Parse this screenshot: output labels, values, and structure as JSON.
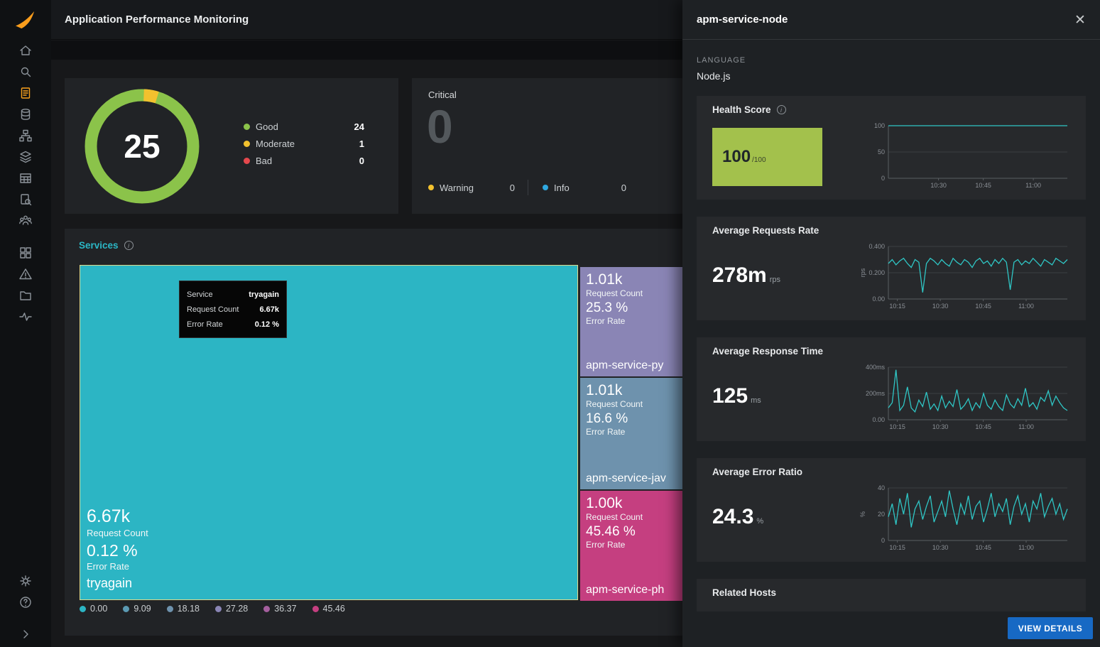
{
  "header": {
    "title": "Application Performance Monitoring"
  },
  "sidebar": {
    "icons": [
      "solarwinds-logo",
      "home",
      "search",
      "reports-active",
      "database",
      "topology",
      "layers",
      "table",
      "query",
      "users",
      "dashboards",
      "alerts",
      "projects",
      "activity",
      "settings",
      "help",
      "collapse"
    ]
  },
  "summary": {
    "score": "25",
    "legend": [
      {
        "label": "Good",
        "value": "24",
        "color": "#8bc34a"
      },
      {
        "label": "Moderate",
        "value": "1",
        "color": "#f2c12e"
      },
      {
        "label": "Bad",
        "value": "0",
        "color": "#e5484d"
      }
    ],
    "critical_label": "Critical",
    "critical_value": "0",
    "warning_label": "Warning",
    "warning_value": "0",
    "warning_color": "#f2c12e",
    "info_label": "Info",
    "info_value": "0",
    "info_color": "#2fa8e0"
  },
  "services": {
    "title": "Services",
    "tooltip": {
      "rows": [
        {
          "label": "Service",
          "value": "tryagain"
        },
        {
          "label": "Request Count",
          "value": "6.67k"
        },
        {
          "label": "Error Rate",
          "value": "0.12 %"
        }
      ]
    },
    "cells": {
      "main": {
        "request_count": "6.67k",
        "request_label": "Request Count",
        "error_rate": "0.12 %",
        "error_label": "Error Rate",
        "name": "tryagain",
        "color": "#2cb5c4"
      },
      "side": [
        {
          "request_count": "1.01k",
          "request_label": "Request Count",
          "error_rate": "25.3 %",
          "error_label": "Error Rate",
          "name": "apm-service-py",
          "color": "#8a85b5"
        },
        {
          "request_count": "1.01k",
          "request_label": "Request Count",
          "error_rate": "16.6 %",
          "error_label": "Error Rate",
          "name": "apm-service-jav",
          "color": "#6e92ad"
        },
        {
          "request_count": "1.00k",
          "request_label": "Request Count",
          "error_rate": "45.46 %",
          "error_label": "Error Rate",
          "name": "apm-service-ph",
          "color": "#c53f80"
        }
      ]
    },
    "legend": [
      {
        "value": "0.00",
        "color": "#2cb5c4"
      },
      {
        "value": "9.09",
        "color": "#5b9ab3"
      },
      {
        "value": "18.18",
        "color": "#6e92ad"
      },
      {
        "value": "27.28",
        "color": "#8a85b5"
      },
      {
        "value": "36.37",
        "color": "#a55f9e"
      },
      {
        "value": "45.46",
        "color": "#c53f80"
      }
    ]
  },
  "drawer": {
    "title": "apm-service-node",
    "language_label": "LANGUAGE",
    "language_value": "Node.js",
    "related_hosts": "Related Hosts",
    "view_details": "VIEW DETAILS",
    "cards": [
      {
        "title": "Health Score",
        "value": "100",
        "unit": "/100",
        "box_color": "#a3c14c",
        "chart": {
          "type": "line",
          "color": "#2fc6c5",
          "ymin": 0,
          "ymax": 100,
          "yticks": [
            {
              "v": 100,
              "label": "100"
            },
            {
              "v": 50,
              "label": "50"
            },
            {
              "v": 0,
              "label": "0"
            }
          ],
          "xticks": [
            {
              "pos": 0.28,
              "label": "10:30"
            },
            {
              "pos": 0.53,
              "label": "10:45"
            },
            {
              "pos": 0.81,
              "label": "11:00"
            }
          ],
          "values": [
            100,
            100,
            100,
            100,
            100,
            100,
            100,
            100,
            100,
            100,
            100,
            100,
            100,
            100,
            100,
            100,
            100,
            100,
            100,
            100,
            100,
            100,
            100,
            100,
            100
          ]
        }
      },
      {
        "title": "Average Requests Rate",
        "value": "278m",
        "unit": "rps",
        "chart": {
          "type": "line",
          "color": "#2fc6c5",
          "ymin": 0,
          "ymax": 0.4,
          "side_label": "rps",
          "yticks": [
            {
              "v": 0.4,
              "label": "0.400"
            },
            {
              "v": 0.2,
              "label": "0.200"
            },
            {
              "v": 0,
              "label": "0.00"
            }
          ],
          "xticks": [
            {
              "pos": 0.05,
              "label": "10:15"
            },
            {
              "pos": 0.29,
              "label": "10:30"
            },
            {
              "pos": 0.53,
              "label": "10:45"
            },
            {
              "pos": 0.77,
              "label": "11:00"
            }
          ],
          "values": [
            0.27,
            0.3,
            0.26,
            0.29,
            0.31,
            0.27,
            0.24,
            0.3,
            0.28,
            0.05,
            0.27,
            0.31,
            0.29,
            0.26,
            0.3,
            0.27,
            0.25,
            0.31,
            0.28,
            0.26,
            0.3,
            0.28,
            0.24,
            0.29,
            0.31,
            0.27,
            0.29,
            0.25,
            0.3,
            0.27,
            0.31,
            0.28,
            0.07,
            0.28,
            0.3,
            0.26,
            0.29,
            0.27,
            0.31,
            0.28,
            0.25,
            0.3,
            0.28,
            0.26,
            0.31,
            0.29,
            0.27,
            0.3
          ]
        }
      },
      {
        "title": "Average Response Time",
        "value": "125",
        "unit": "ms",
        "chart": {
          "type": "line",
          "color": "#2fc6c5",
          "ymin": 0,
          "ymax": 400,
          "yticks": [
            {
              "v": 400,
              "label": "400ms"
            },
            {
              "v": 200,
              "label": "200ms"
            },
            {
              "v": 0,
              "label": "0.00"
            }
          ],
          "xticks": [
            {
              "pos": 0.05,
              "label": "10:15"
            },
            {
              "pos": 0.29,
              "label": "10:30"
            },
            {
              "pos": 0.53,
              "label": "10:45"
            },
            {
              "pos": 0.77,
              "label": "11:00"
            }
          ],
          "values": [
            90,
            130,
            380,
            70,
            110,
            250,
            90,
            60,
            150,
            100,
            210,
            80,
            120,
            70,
            180,
            90,
            140,
            100,
            230,
            80,
            110,
            160,
            70,
            130,
            90,
            200,
            110,
            80,
            150,
            100,
            70,
            190,
            120,
            90,
            160,
            110,
            240,
            100,
            130,
            80,
            170,
            140,
            220,
            110,
            180,
            130,
            90,
            70
          ]
        }
      },
      {
        "title": "Average Error Ratio",
        "value": "24.3",
        "unit": "%",
        "chart": {
          "type": "line",
          "color": "#2fc6c5",
          "ymin": 0,
          "ymax": 40,
          "side_label": "%",
          "yticks": [
            {
              "v": 40,
              "label": "40"
            },
            {
              "v": 20,
              "label": "20"
            },
            {
              "v": 0,
              "label": "0"
            }
          ],
          "xticks": [
            {
              "pos": 0.05,
              "label": "10:15"
            },
            {
              "pos": 0.29,
              "label": "10:30"
            },
            {
              "pos": 0.53,
              "label": "10:45"
            },
            {
              "pos": 0.77,
              "label": "11:00"
            }
          ],
          "values": [
            18,
            28,
            12,
            32,
            20,
            36,
            10,
            24,
            30,
            16,
            26,
            34,
            14,
            22,
            30,
            18,
            38,
            24,
            12,
            28,
            20,
            34,
            16,
            26,
            30,
            14,
            24,
            36,
            18,
            28,
            22,
            32,
            12,
            26,
            34,
            20,
            28,
            14,
            30,
            24,
            36,
            18,
            26,
            32,
            20,
            28,
            16,
            24
          ]
        }
      }
    ]
  }
}
